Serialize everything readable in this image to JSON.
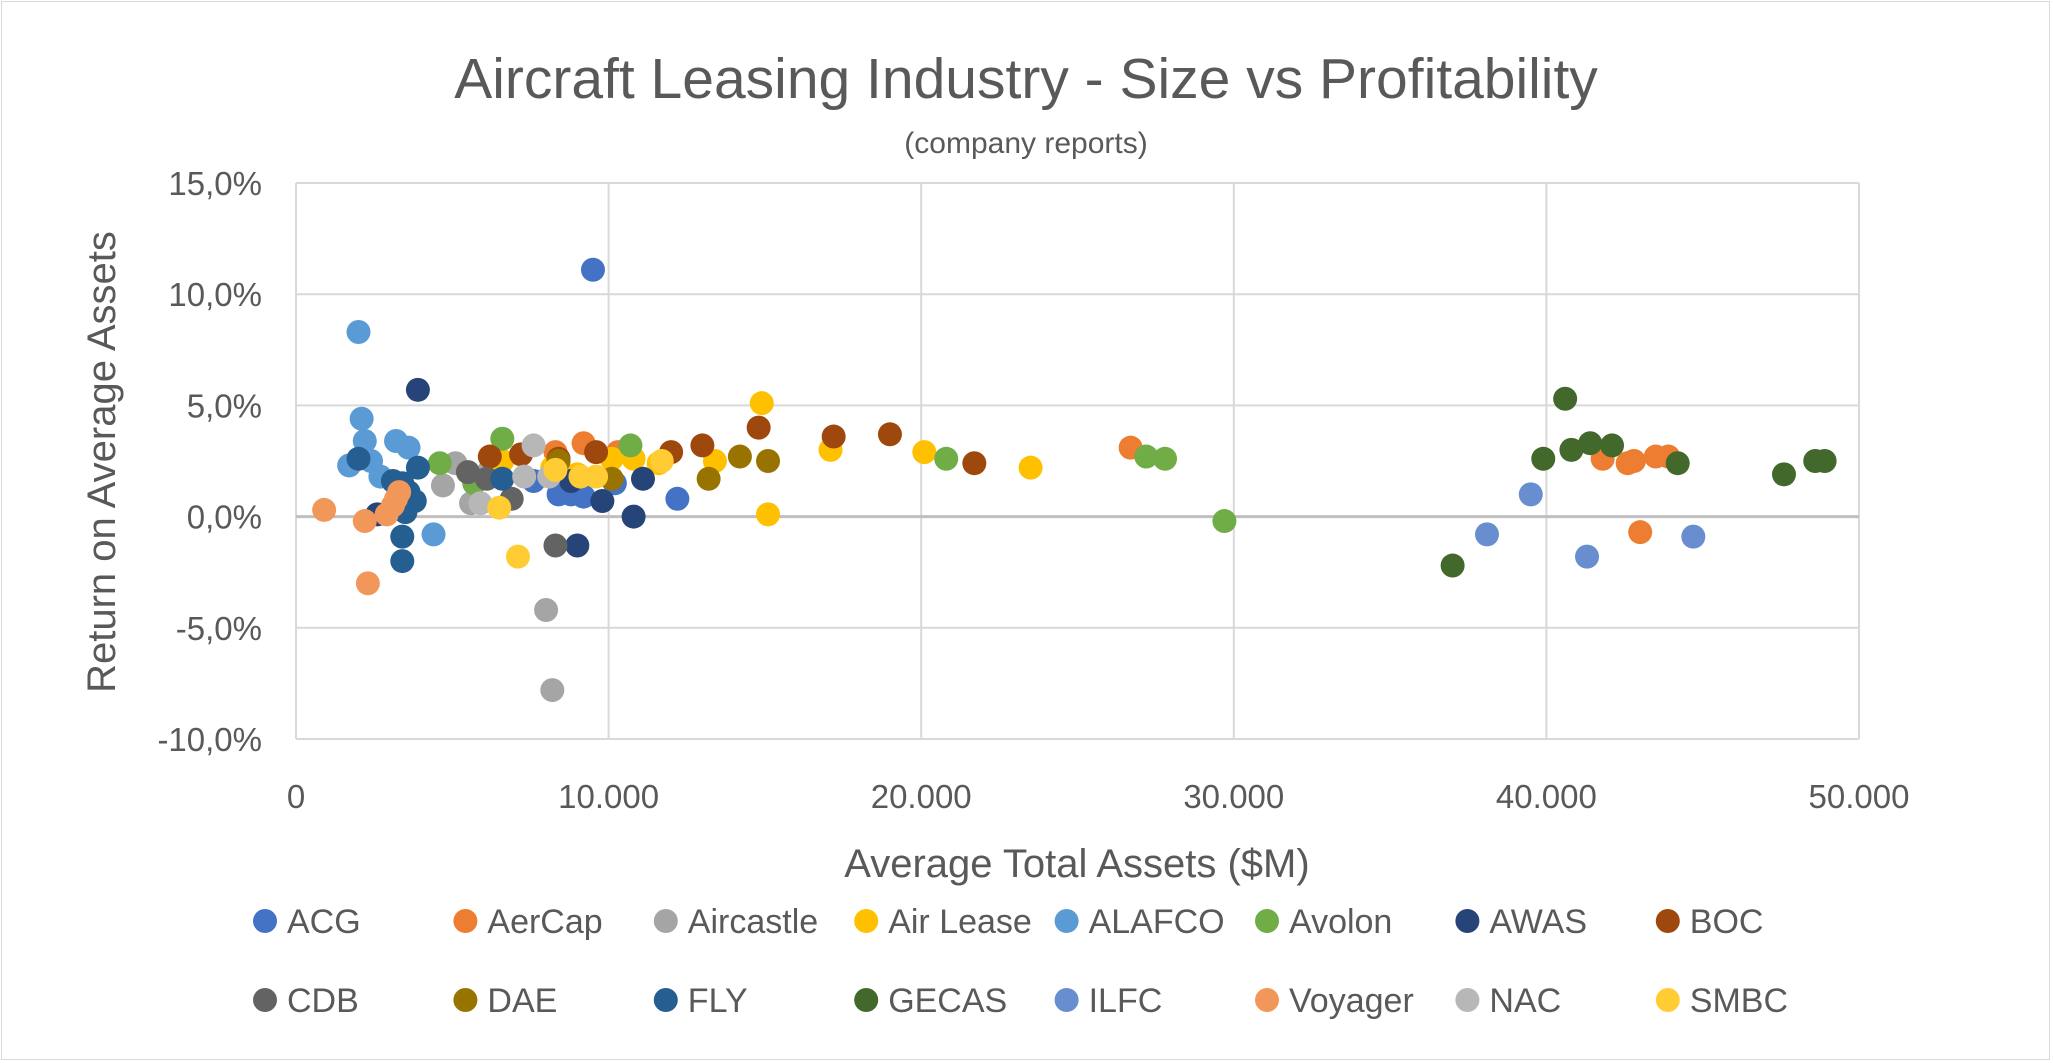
{
  "chart_data": {
    "type": "scatter",
    "title": "Aircraft Leasing Industry - Size vs Profitability",
    "subtitle": "(company reports)",
    "xlabel": "Average Total Assets ($M)",
    "ylabel": "Return on Average Assets",
    "xlim": [
      0,
      50000
    ],
    "ylim": [
      -10,
      15
    ],
    "x_ticks": [
      0,
      10000,
      20000,
      30000,
      40000,
      50000
    ],
    "x_tick_labels": [
      "0",
      "10.000",
      "20.000",
      "30.000",
      "40.000",
      "50.000"
    ],
    "y_ticks": [
      -10,
      -5,
      0,
      5,
      10,
      15
    ],
    "y_tick_labels": [
      "-10,0%",
      "-5,0%",
      "0,0%",
      "5,0%",
      "10,0%",
      "15,0%"
    ],
    "grid": true,
    "legend_position": "bottom",
    "series": [
      {
        "name": "ACG",
        "color": "#4472C4",
        "points": [
          [
            9500,
            11.1
          ],
          [
            8400,
            1.0
          ],
          [
            8800,
            1.0
          ],
          [
            9200,
            0.9
          ],
          [
            12200,
            0.8
          ],
          [
            7600,
            1.6
          ],
          [
            10200,
            1.5
          ]
        ]
      },
      {
        "name": "AerCap",
        "color": "#ED7D31",
        "points": [
          [
            8300,
            2.9
          ],
          [
            9200,
            3.3
          ],
          [
            10300,
            2.9
          ],
          [
            26700,
            3.1
          ],
          [
            41800,
            2.6
          ],
          [
            42600,
            2.4
          ],
          [
            42800,
            2.5
          ],
          [
            43500,
            2.7
          ],
          [
            43900,
            2.7
          ],
          [
            43000,
            -0.7
          ]
        ]
      },
      {
        "name": "Aircastle",
        "color": "#A5A5A5",
        "points": [
          [
            5100,
            2.4
          ],
          [
            4700,
            1.4
          ],
          [
            5600,
            0.6
          ],
          [
            6200,
            2.1
          ],
          [
            8000,
            -4.2
          ],
          [
            8200,
            -7.8
          ]
        ]
      },
      {
        "name": "Air Lease",
        "color": "#FFC000",
        "points": [
          [
            6600,
            2.5
          ],
          [
            8200,
            2.2
          ],
          [
            9000,
            1.9
          ],
          [
            10100,
            2.6
          ],
          [
            10800,
            2.6
          ],
          [
            11600,
            2.4
          ],
          [
            13400,
            2.5
          ],
          [
            14900,
            5.1
          ],
          [
            17100,
            3.0
          ],
          [
            20100,
            2.9
          ],
          [
            23500,
            2.2
          ],
          [
            15100,
            0.1
          ]
        ]
      },
      {
        "name": "ALAFCO",
        "color": "#5B9BD5",
        "points": [
          [
            2000,
            8.3
          ],
          [
            2100,
            4.4
          ],
          [
            2200,
            3.4
          ],
          [
            3200,
            3.4
          ],
          [
            3600,
            3.1
          ],
          [
            1700,
            2.3
          ],
          [
            2400,
            2.5
          ],
          [
            2700,
            1.8
          ],
          [
            4400,
            -0.8
          ]
        ]
      },
      {
        "name": "Avolon",
        "color": "#70AD47",
        "points": [
          [
            4600,
            2.4
          ],
          [
            6600,
            3.5
          ],
          [
            5700,
            1.5
          ],
          [
            10700,
            3.2
          ],
          [
            20800,
            2.6
          ],
          [
            27200,
            2.7
          ],
          [
            27800,
            2.6
          ],
          [
            29700,
            -0.2
          ]
        ]
      },
      {
        "name": "AWAS",
        "color": "#264478",
        "points": [
          [
            3900,
            5.7
          ],
          [
            2600,
            0.1
          ],
          [
            8800,
            1.6
          ],
          [
            9000,
            -1.3
          ],
          [
            9800,
            0.7
          ],
          [
            10800,
            0.0
          ],
          [
            11100,
            1.7
          ]
        ]
      },
      {
        "name": "BOC",
        "color": "#9E480E",
        "points": [
          [
            6200,
            2.7
          ],
          [
            7200,
            2.8
          ],
          [
            8400,
            2.6
          ],
          [
            9600,
            2.9
          ],
          [
            12000,
            2.9
          ],
          [
            13000,
            3.2
          ],
          [
            14800,
            4.0
          ],
          [
            17200,
            3.6
          ],
          [
            19000,
            3.7
          ],
          [
            21700,
            2.4
          ]
        ]
      },
      {
        "name": "CDB",
        "color": "#636363",
        "points": [
          [
            5500,
            2.0
          ],
          [
            6100,
            1.7
          ],
          [
            6900,
            0.8
          ],
          [
            8300,
            -1.3
          ]
        ]
      },
      {
        "name": "DAE",
        "color": "#997300",
        "points": [
          [
            8400,
            2.5
          ],
          [
            10100,
            1.7
          ],
          [
            13200,
            1.7
          ],
          [
            14200,
            2.7
          ],
          [
            15100,
            2.5
          ]
        ]
      },
      {
        "name": "FLY",
        "color": "#255E91",
        "points": [
          [
            2000,
            2.6
          ],
          [
            3100,
            1.6
          ],
          [
            3400,
            1.5
          ],
          [
            3900,
            2.2
          ],
          [
            3600,
            1.1
          ],
          [
            3800,
            0.7
          ],
          [
            3500,
            0.2
          ],
          [
            3400,
            -0.9
          ],
          [
            3400,
            -2.0
          ],
          [
            6600,
            1.7
          ]
        ]
      },
      {
        "name": "GECAS",
        "color": "#43682B",
        "points": [
          [
            37000,
            -2.2
          ],
          [
            39900,
            2.6
          ],
          [
            40600,
            5.3
          ],
          [
            40800,
            3.0
          ],
          [
            41400,
            3.3
          ],
          [
            42100,
            3.2
          ],
          [
            44200,
            2.4
          ],
          [
            47600,
            1.9
          ],
          [
            48600,
            2.5
          ],
          [
            48900,
            2.5
          ]
        ]
      },
      {
        "name": "ILFC",
        "color": "#698ED0",
        "points": [
          [
            38100,
            -0.8
          ],
          [
            39500,
            1.0
          ],
          [
            41300,
            -1.8
          ],
          [
            44700,
            -0.9
          ]
        ]
      },
      {
        "name": "Voyager",
        "color": "#F1975A",
        "points": [
          [
            900,
            0.3
          ],
          [
            2200,
            -0.2
          ],
          [
            2300,
            -3.0
          ],
          [
            2900,
            0.1
          ],
          [
            3100,
            0.5
          ],
          [
            3200,
            0.8
          ],
          [
            3300,
            1.1
          ]
        ]
      },
      {
        "name": "NAC",
        "color": "#B7B7B7",
        "points": [
          [
            5900,
            0.6
          ],
          [
            7300,
            1.8
          ],
          [
            7600,
            3.2
          ],
          [
            8100,
            1.8
          ]
        ]
      },
      {
        "name": "SMBC",
        "color": "#FFCD33",
        "points": [
          [
            6500,
            0.4
          ],
          [
            7100,
            -1.8
          ],
          [
            8300,
            2.1
          ],
          [
            9100,
            1.8
          ],
          [
            9600,
            1.8
          ],
          [
            11700,
            2.5
          ]
        ]
      }
    ]
  }
}
